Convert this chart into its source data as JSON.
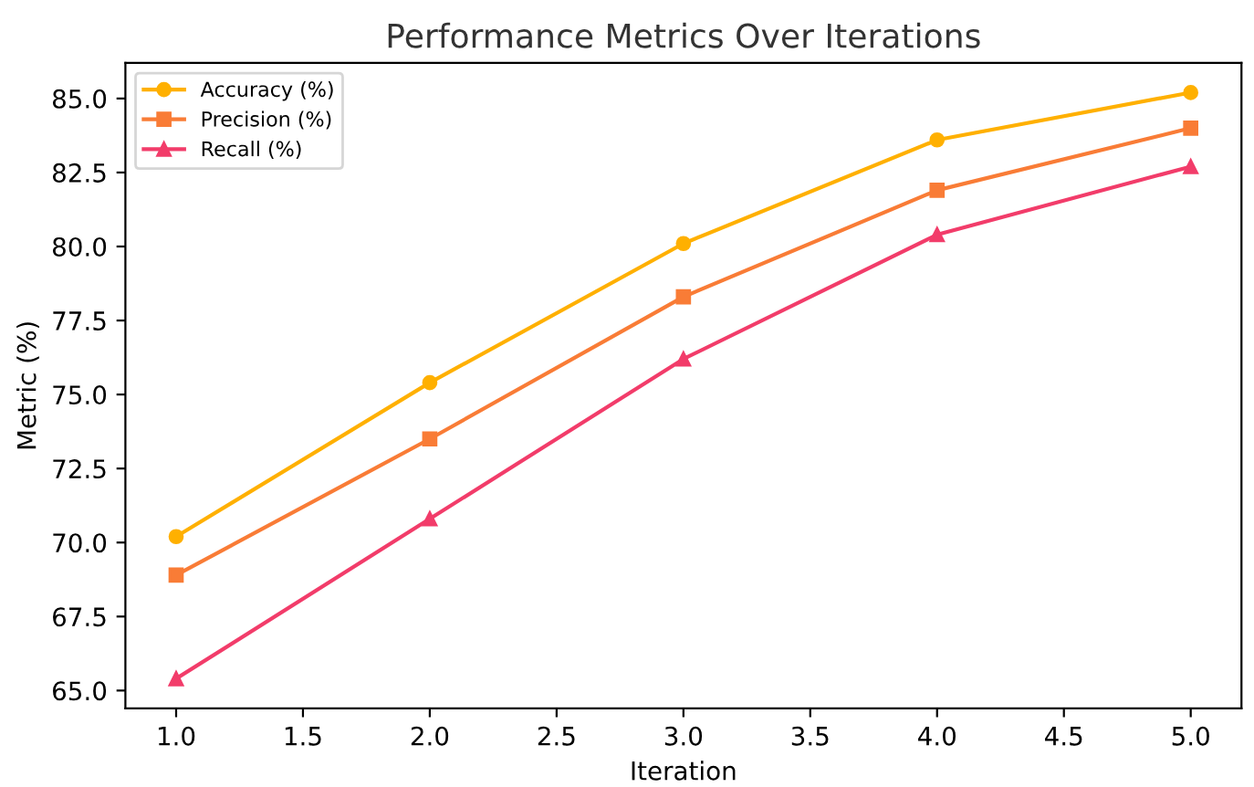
{
  "chart_data": {
    "type": "line",
    "title": "Performance Metrics Over Iterations",
    "xlabel": "Iteration",
    "ylabel": "Metric (%)",
    "x": [
      1,
      2,
      3,
      4,
      5
    ],
    "series": [
      {
        "name": "Accuracy (%)",
        "color": "#ffb000",
        "marker": "circle",
        "values": [
          70.2,
          75.4,
          80.1,
          83.6,
          85.2
        ]
      },
      {
        "name": "Precision (%)",
        "color": "#f97c36",
        "marker": "square",
        "values": [
          68.9,
          73.5,
          78.3,
          81.9,
          84.0
        ]
      },
      {
        "name": "Recall (%)",
        "color": "#f23c6a",
        "marker": "triangle",
        "values": [
          65.4,
          70.8,
          76.2,
          80.4,
          82.7
        ]
      }
    ],
    "xlim": [
      0.8,
      5.2
    ],
    "ylim": [
      64.4,
      86.2
    ],
    "xticks": [
      {
        "value": 1,
        "label": "1.0"
      },
      {
        "value": 1.5,
        "label": "1.5"
      },
      {
        "value": 2,
        "label": "2.0"
      },
      {
        "value": 2.5,
        "label": "2.5"
      },
      {
        "value": 3,
        "label": "3.0"
      },
      {
        "value": 3.5,
        "label": "3.5"
      },
      {
        "value": 4,
        "label": "4.0"
      },
      {
        "value": 4.5,
        "label": "4.5"
      },
      {
        "value": 5,
        "label": "5.0"
      }
    ],
    "yticks": [
      {
        "value": 65,
        "label": "65.0"
      },
      {
        "value": 67.5,
        "label": "67.5"
      },
      {
        "value": 70,
        "label": "70.0"
      },
      {
        "value": 72.5,
        "label": "72.5"
      },
      {
        "value": 75,
        "label": "75.0"
      },
      {
        "value": 77.5,
        "label": "77.5"
      },
      {
        "value": 80,
        "label": "80.0"
      },
      {
        "value": 82.5,
        "label": "82.5"
      },
      {
        "value": 85,
        "label": "85.0"
      }
    ],
    "grid": false,
    "legend": "top left",
    "line_style": "solid"
  }
}
